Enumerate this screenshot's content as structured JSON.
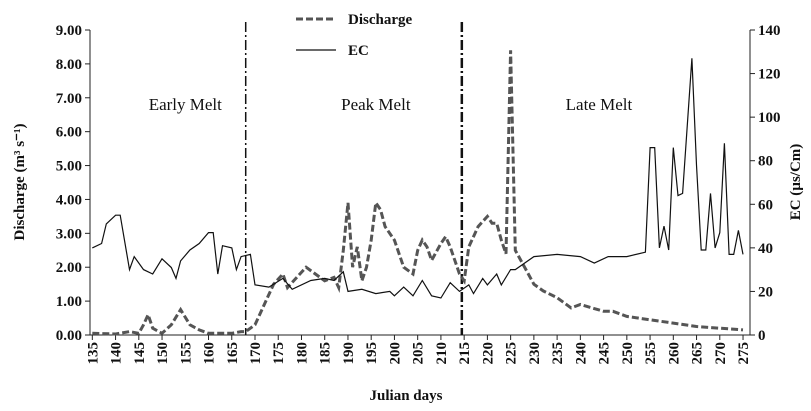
{
  "chart_data": {
    "type": "line",
    "xlabel": "Julian days",
    "ylabel": "Discharge (m³ s⁻¹)",
    "y2label": "EC (µs/Cm)",
    "xlim": [
      134.5,
      276.5
    ],
    "xticks": [
      135,
      140,
      145,
      150,
      155,
      160,
      165,
      170,
      175,
      180,
      185,
      190,
      195,
      200,
      205,
      210,
      215,
      220,
      225,
      230,
      235,
      240,
      245,
      250,
      255,
      260,
      265,
      270,
      275
    ],
    "ylim": [
      0,
      9
    ],
    "yticks": [
      {
        "value": 0,
        "label": "0.00"
      },
      {
        "value": 1,
        "label": "1.00"
      },
      {
        "value": 2,
        "label": "2.00"
      },
      {
        "value": 3,
        "label": "3.00"
      },
      {
        "value": 4,
        "label": "4.00"
      },
      {
        "value": 5,
        "label": "5.00"
      },
      {
        "value": 6,
        "label": "6.00"
      },
      {
        "value": 7,
        "label": "7.00"
      },
      {
        "value": 8,
        "label": "8.00"
      },
      {
        "value": 9,
        "label": "9.00"
      }
    ],
    "y2lim": [
      0,
      140
    ],
    "y2ticks": [
      0,
      20,
      40,
      60,
      80,
      100,
      120,
      140
    ],
    "phase_dividers": [
      168,
      214.5
    ],
    "annotations": [
      "Early Melt",
      "Peak Melt",
      "Late Melt"
    ],
    "series": [
      {
        "name": "Discharge",
        "color": "#555555",
        "style": "dashed",
        "x": [
          135,
          140,
          143,
          145,
          146,
          147,
          148,
          150,
          152,
          154,
          156,
          158,
          160,
          165,
          167,
          168,
          170,
          172,
          174,
          176,
          177,
          179,
          181,
          183,
          185,
          187,
          188,
          189,
          190,
          191,
          192,
          193,
          194,
          195,
          196,
          197,
          198,
          200,
          202,
          204,
          205,
          206,
          207,
          208,
          210,
          211,
          212,
          214,
          215,
          216,
          218,
          220,
          221,
          222,
          223,
          224,
          225,
          226,
          228,
          230,
          232,
          235,
          238,
          240,
          245,
          247,
          250,
          255,
          260,
          265,
          270,
          275
        ],
        "values": [
          0.05,
          0.03,
          0.1,
          0.05,
          0.3,
          0.6,
          0.2,
          0.05,
          0.3,
          0.75,
          0.3,
          0.15,
          0.05,
          0.05,
          0.1,
          0.1,
          0.3,
          0.9,
          1.5,
          1.8,
          1.4,
          1.7,
          2.0,
          1.8,
          1.6,
          1.7,
          1.4,
          2.5,
          3.9,
          2.0,
          2.6,
          1.6,
          2.0,
          2.8,
          3.9,
          3.7,
          3.2,
          2.8,
          2.0,
          1.8,
          2.5,
          2.8,
          2.6,
          2.2,
          2.7,
          2.9,
          2.6,
          1.8,
          1.6,
          2.6,
          3.2,
          3.5,
          3.3,
          3.3,
          2.8,
          2.4,
          8.4,
          2.5,
          2.0,
          1.5,
          1.3,
          1.1,
          0.8,
          0.9,
          0.7,
          0.7,
          0.55,
          0.45,
          0.35,
          0.25,
          0.2,
          0.15
        ]
      },
      {
        "name": "EC",
        "color": "#111111",
        "style": "solid",
        "axis": "y2",
        "x": [
          135,
          137,
          138,
          140,
          141,
          143,
          144,
          146,
          148,
          150,
          152,
          153,
          154,
          156,
          158,
          160,
          161,
          162,
          163,
          165,
          166,
          167,
          169,
          170,
          173,
          176,
          178,
          182,
          185,
          187,
          189,
          190,
          193,
          196,
          199,
          200,
          202,
          204,
          206,
          208,
          210,
          212,
          214,
          216,
          217,
          219,
          220,
          222,
          223,
          225,
          226,
          230,
          235,
          240,
          243,
          246,
          250,
          254,
          255,
          256,
          257,
          258,
          259,
          260,
          261,
          262,
          264,
          265,
          266,
          267,
          268,
          269,
          270,
          271,
          272,
          273,
          274,
          275
        ],
        "values": [
          40,
          42,
          51,
          55,
          55,
          30,
          36,
          30,
          28,
          35,
          31,
          26,
          34,
          39,
          42,
          47,
          47,
          28,
          41,
          40,
          30,
          36,
          37,
          23,
          22,
          26,
          21,
          25,
          26,
          25,
          29,
          20,
          21,
          19,
          20,
          18,
          22,
          18,
          25,
          18,
          17,
          24,
          20,
          23,
          19,
          26,
          23,
          28,
          23,
          30,
          30,
          36,
          37,
          36,
          33,
          36,
          36,
          38,
          86,
          86,
          40,
          50,
          39,
          86,
          64,
          65,
          127,
          78,
          39,
          39,
          65,
          40,
          47,
          88,
          37,
          37,
          48,
          37
        ]
      }
    ]
  }
}
